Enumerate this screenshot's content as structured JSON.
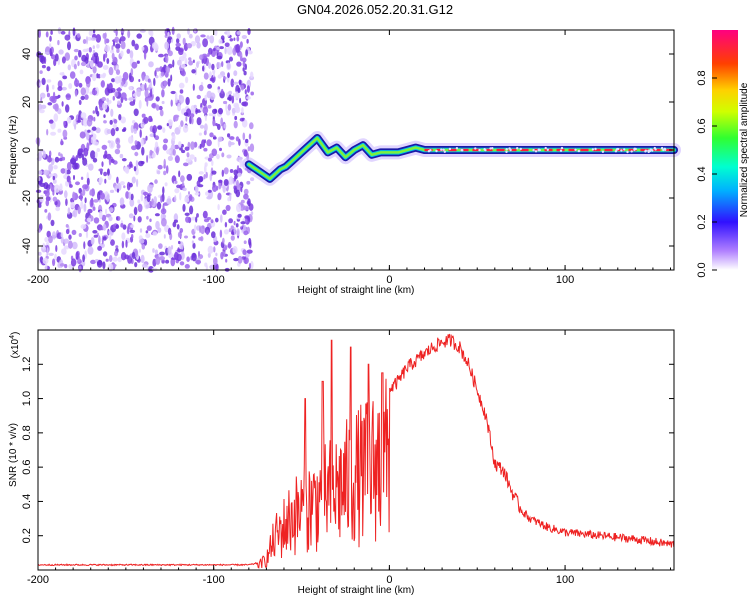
{
  "title": "GN04.2026.052.20.31.G12",
  "colors": {
    "snr_line": "#ee2222",
    "spectrum_dots": "#8f4be8",
    "axis": "#000000"
  },
  "chart_data": [
    {
      "type": "heatmap",
      "name": "spectrogram",
      "xlabel": "Height of straight line (km)",
      "ylabel": "Frequency (Hz)",
      "xlim": [
        -200,
        162
      ],
      "ylim": [
        -50,
        50
      ],
      "xticks": [
        -200,
        -100,
        0,
        100
      ],
      "yticks": [
        -40,
        -20,
        0,
        20,
        40
      ],
      "noise_region": [
        -200,
        -78
      ],
      "peak_track": {
        "x": [
          -80,
          -76,
          -72,
          -68,
          -65,
          -62,
          -59,
          -56,
          -53,
          -50,
          -47,
          -44,
          -41,
          -38,
          -35,
          -30,
          -25,
          -20,
          -15,
          -10,
          -5,
          0,
          5,
          10,
          15,
          20,
          30,
          60,
          100,
          162
        ],
        "y": [
          -6,
          -8,
          -10,
          -12,
          -10,
          -8,
          -7,
          -5,
          -3,
          -1,
          1,
          3,
          5,
          2,
          -1,
          1,
          -3,
          0,
          2,
          -2,
          -1,
          -1,
          -1,
          0,
          1,
          0,
          0,
          0,
          0,
          0
        ]
      },
      "colorbar": {
        "label": "Normalized spectral amplitude",
        "range": [
          0,
          1
        ],
        "ticks": [
          "0.0",
          "0.2",
          "0.4",
          "0.6",
          "0.8"
        ]
      }
    },
    {
      "type": "line",
      "name": "snr",
      "xlabel": "Height of straight line (km)",
      "ylabel": "SNR (10 * v/v)",
      "scale_note": "(x10",
      "scale_exp": "4",
      "scale_close": ")",
      "xlim": [
        -200,
        162
      ],
      "ylim": [
        0,
        1.4
      ],
      "xticks": [
        -200,
        -100,
        0,
        100
      ],
      "yticks": [
        "0.2",
        "0.4",
        "0.6",
        "0.8",
        "1.0",
        "1.2"
      ],
      "series": [
        {
          "name": "SNR",
          "x": [
            -200,
            -150,
            -100,
            -80,
            -75,
            -70,
            -65,
            -60,
            -55,
            -50,
            -45,
            -40,
            -35,
            -30,
            -25,
            -20,
            -15,
            -10,
            -5,
            0,
            5,
            10,
            15,
            20,
            25,
            30,
            35,
            40,
            45,
            50,
            55,
            60,
            65,
            70,
            75,
            80,
            90,
            100,
            120,
            140,
            160
          ],
          "values": [
            0.03,
            0.03,
            0.03,
            0.03,
            0.04,
            0.1,
            0.3,
            0.4,
            0.5,
            0.55,
            0.6,
            0.65,
            0.7,
            0.75,
            0.8,
            0.85,
            0.9,
            0.95,
            1.0,
            1.05,
            1.1,
            1.18,
            1.22,
            1.26,
            1.3,
            1.33,
            1.34,
            1.3,
            1.2,
            1.05,
            0.9,
            0.62,
            0.58,
            0.45,
            0.35,
            0.3,
            0.25,
            0.22,
            0.2,
            0.18,
            0.15
          ],
          "spikes": [
            [
              -48,
              1.0
            ],
            [
              -38,
              1.1
            ],
            [
              -33,
              1.34
            ],
            [
              -22,
              1.3
            ],
            [
              -12,
              1.2
            ],
            [
              -4,
              1.15
            ]
          ]
        }
      ]
    }
  ]
}
